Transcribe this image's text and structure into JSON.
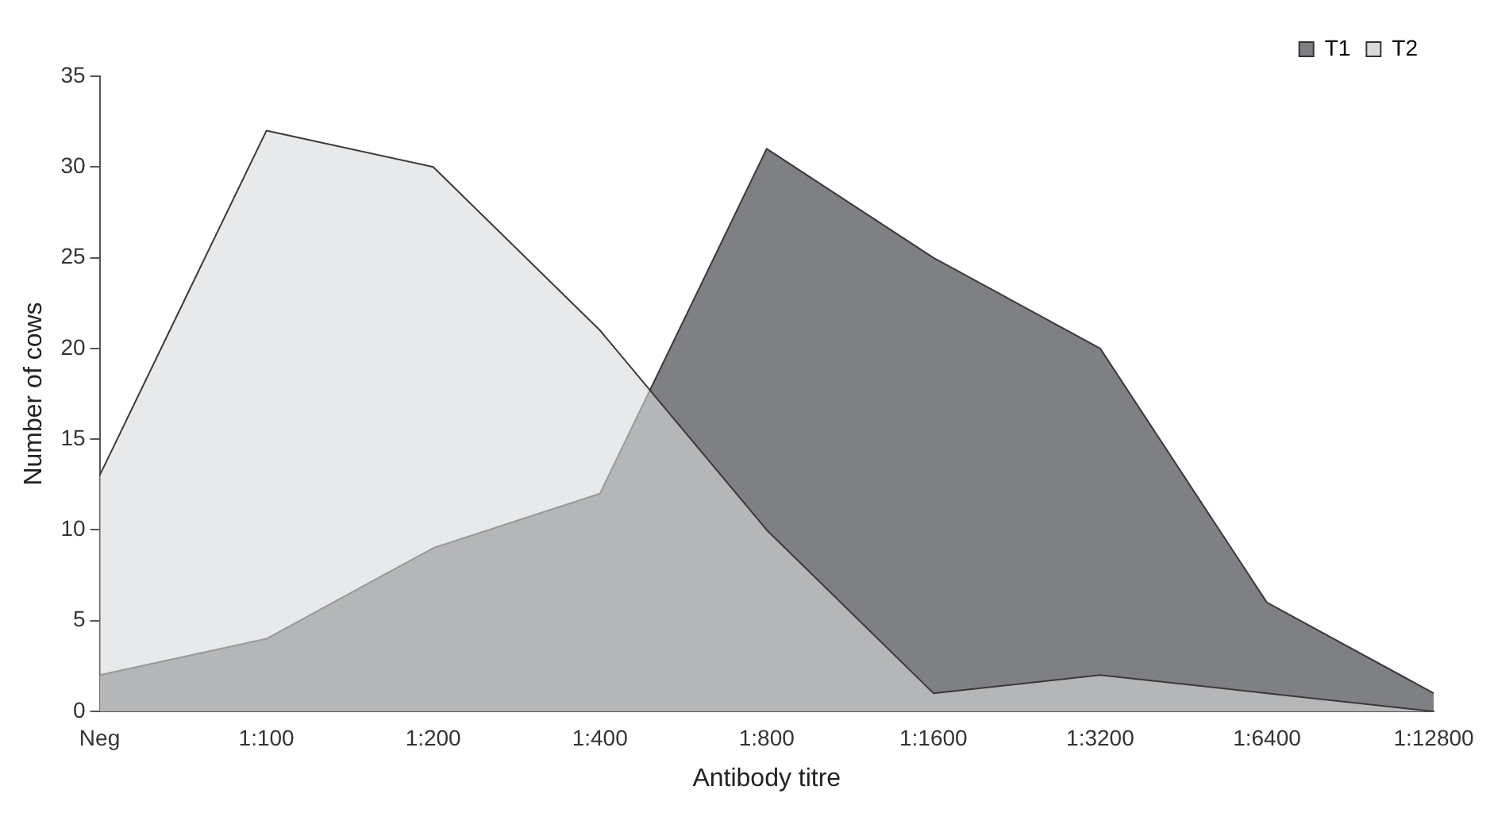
{
  "chart_data": {
    "type": "area",
    "xlabel": "Antibody titre",
    "ylabel": "Number of cows",
    "categories": [
      "Neg",
      "1:100",
      "1:200",
      "1:400",
      "1:800",
      "1:1600",
      "1:3200",
      "1:6400",
      "1:12800"
    ],
    "series": [
      {
        "name": "T1",
        "color": "#7f8083",
        "values": [
          2,
          4,
          9,
          12,
          31,
          25,
          20,
          6,
          1
        ]
      },
      {
        "name": "T2",
        "color": "#d9dadc",
        "values": [
          13,
          32,
          30,
          21,
          10,
          1,
          2,
          1,
          0
        ]
      }
    ],
    "ylim": [
      0,
      35
    ],
    "yticks": [
      0,
      5,
      10,
      15,
      20,
      25,
      30,
      35
    ],
    "grid": false,
    "legend": "top right",
    "marker": "none",
    "line_style": "solid"
  }
}
